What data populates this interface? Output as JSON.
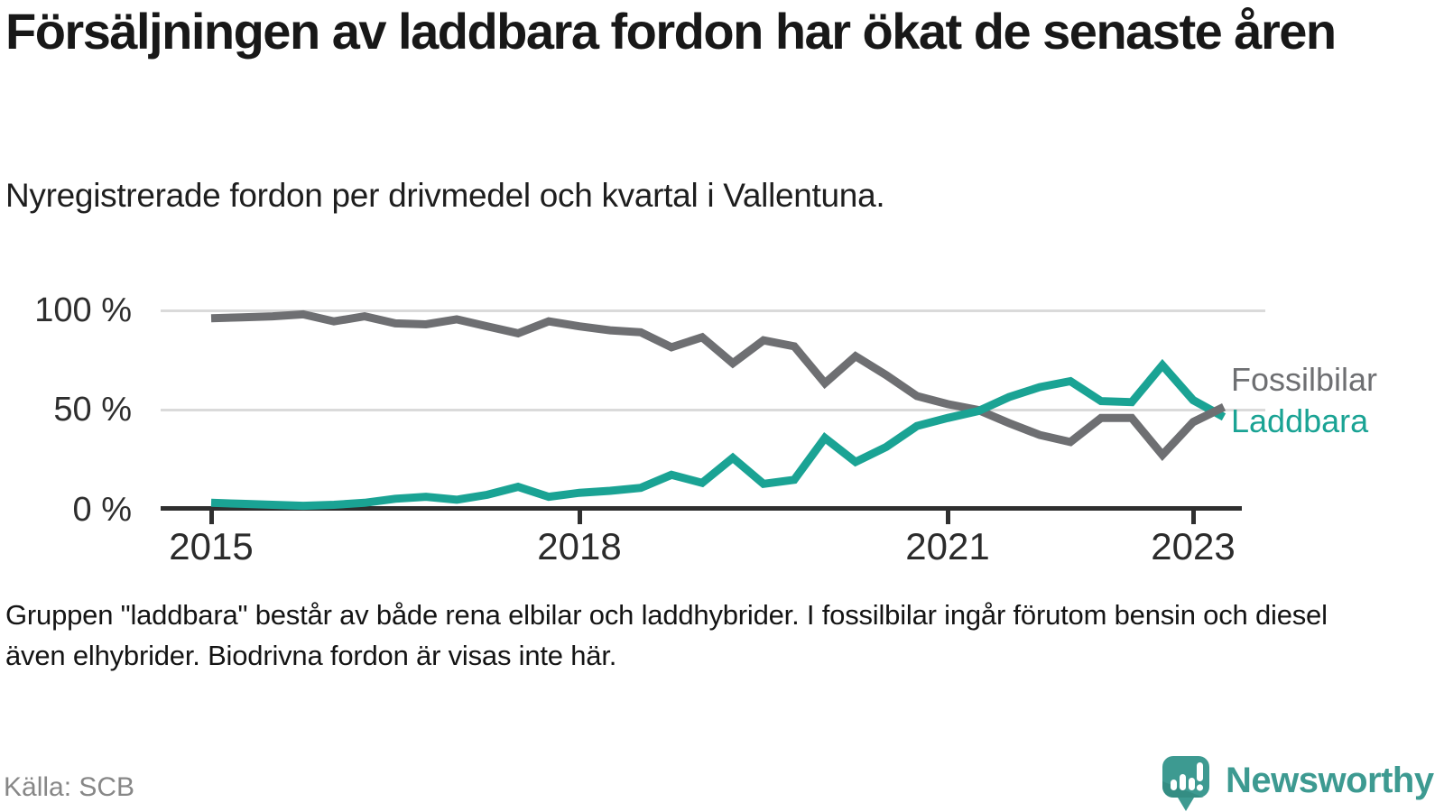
{
  "header": {
    "title": "Försäljningen av laddbara fordon har ökat de senaste åren",
    "subtitle": "Nyregistrerade fordon per drivmedel och kvartal i Vallentuna."
  },
  "footnote": "Gruppen \"laddbara\" består av både rena elbilar och laddhybrider. I fossilbilar ingår förutom bensin och diesel även elhybrider. Biodrivna fordon är visas inte här.",
  "source": "Källa: SCB",
  "branding": {
    "logo_text": "Newsworthy",
    "logo_icon": "newsworthy-speech-bubble-barchart-icon",
    "logo_color": "#3d9a91"
  },
  "colors": {
    "fossil_line": "#6e6f72",
    "laddbara_line": "#1aa394",
    "axis": "#2f2f2f",
    "gridline": "#dadada",
    "text_dark": "#181818",
    "text_muted": "#878787"
  },
  "chart_data": {
    "type": "line",
    "x_unit": "quarter",
    "x_start_year": 2015,
    "x_step_years": 0.25,
    "x_tick_labels": [
      "2015",
      "2018",
      "2021",
      "2023"
    ],
    "x_tick_years": [
      2015,
      2018,
      2021,
      2023
    ],
    "y_tick_labels": [
      "100 %",
      "50 %",
      "0 %"
    ],
    "y_tick_values": [
      100,
      50,
      0
    ],
    "ylim": [
      0,
      100
    ],
    "grid": "horizontal",
    "legend_position": "right-of-line-ends",
    "series": [
      {
        "name": "Fossilbilar",
        "color": "#6e6f72",
        "values": [
          96,
          96.5,
          97,
          98,
          94.5,
          97,
          93.5,
          93,
          95.5,
          92,
          88.5,
          94.5,
          92,
          90,
          89,
          81.5,
          86.5,
          73.5,
          85,
          82,
          63.5,
          77,
          67.5,
          57,
          53,
          50,
          43.5,
          37.5,
          34,
          46,
          46,
          27.5,
          44,
          51.5
        ]
      },
      {
        "name": "Laddbara",
        "color": "#1aa394",
        "values": [
          3.5,
          3,
          2.5,
          2,
          2.5,
          3.5,
          5.5,
          6.5,
          5,
          7.5,
          11.5,
          6.5,
          8.5,
          9.5,
          11,
          17.5,
          13.5,
          26,
          13,
          15,
          36,
          24,
          31.5,
          42,
          46,
          49.5,
          56.5,
          61.5,
          64.5,
          54.5,
          54,
          72.5,
          55,
          46.5
        ]
      }
    ]
  }
}
